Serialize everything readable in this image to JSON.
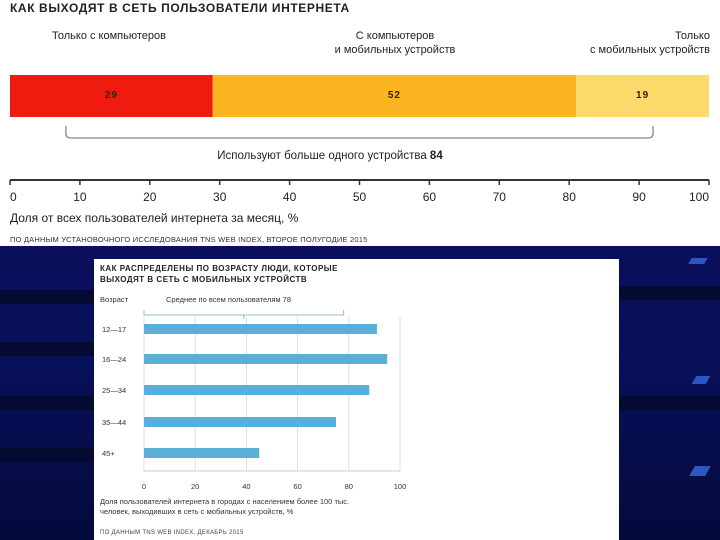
{
  "chart1": {
    "title": "КАК ВЫХОДЯТ В СЕТЬ ПОЛЬЗОВАТЕЛИ ИНТЕРНЕТА",
    "segment_labels": [
      {
        "line1": "Только с компьютеров",
        "line2": ""
      },
      {
        "line1": "С компьютеров",
        "line2": "и мобильных устройств"
      },
      {
        "line1": "Только",
        "line2": "с мобильных устройств"
      }
    ],
    "note_text": "Используют больше одного устройства",
    "note_value": "84",
    "xlabel": "Доля от всех пользователей интернета за месяц, %",
    "source": "ПО ДАННЫМ УСТАНОВОЧНОГО ИССЛЕДОВАНИЯ TNS WEB INDEX, ВТОРОЕ ПОЛУГОДИЕ 2015"
  },
  "chart2": {
    "title_line1": "КАК РАСПРЕДЕЛЕНЫ ПО ВОЗРАСТУ ЛЮДИ, КОТОРЫЕ",
    "title_line2": "ВЫХОДЯТ В СЕТЬ С МОБИЛЬНЫХ УСТРОЙСТВ",
    "column_label": "Возраст",
    "average_text": "Среднее по всем пользователям 78",
    "xlabel_line1": "Доля пользователей интернета в городах с населением более 100 тыс.",
    "xlabel_line2": "человек, выходивших в сеть с мобильных устройств, %",
    "source": "ПО ДАННЫМ TNS WEB INDEX, ДЕКАБРЬ 2015"
  },
  "chart_data": [
    {
      "type": "bar",
      "orientation": "horizontal-stacked",
      "title": "КАК ВЫХОДЯТ В СЕТЬ ПОЛЬЗОВАТЕЛИ ИНТЕРНЕТА",
      "series": [
        {
          "name": "Только с компьютеров",
          "values": [
            29
          ],
          "color": "#ee1c0e"
        },
        {
          "name": "С компьютеров и мобильных устройств",
          "values": [
            52
          ],
          "color": "#fbb422"
        },
        {
          "name": "Только с мобильных устройств",
          "values": [
            19
          ],
          "color": "#fdd86a"
        }
      ],
      "xlabel": "Доля от всех пользователей интернета за месяц, %",
      "xlim": [
        0,
        100
      ],
      "xticks": [
        0,
        10,
        20,
        30,
        40,
        50,
        60,
        70,
        80,
        90,
        100
      ],
      "bracket_range": [
        8,
        92
      ],
      "grid": false
    },
    {
      "type": "bar",
      "orientation": "horizontal",
      "title": "КАК РАСПРЕДЕЛЕНЫ ПО ВОЗРАСТУ ЛЮДИ, КОТОРЫЕ ВЫХОДЯТ В СЕТЬ С МОБИЛЬНЫХ УСТРОЙСТВ",
      "categories": [
        "12—17",
        "16—24",
        "25—34",
        "35—44",
        "45+"
      ],
      "values": [
        91,
        95,
        88,
        75,
        45
      ],
      "average": 78,
      "color": "#5aafd8",
      "xlabel": "Доля пользователей интернета в городах с населением более 100 тыс. человек, выходивших в сеть с мобильных устройств, %",
      "xlim": [
        0,
        100
      ],
      "xticks": [
        0,
        20,
        40,
        60,
        80,
        100
      ],
      "grid": true
    }
  ]
}
